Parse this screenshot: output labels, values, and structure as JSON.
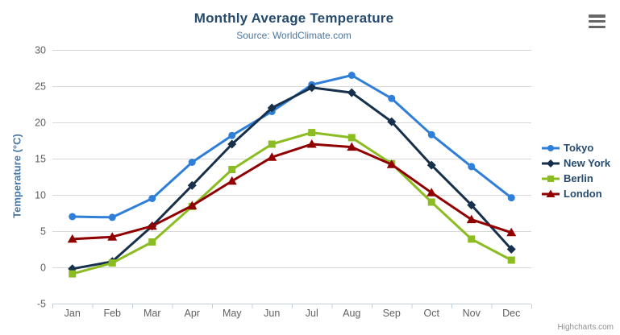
{
  "chart": {
    "title": "Monthly Average Temperature",
    "subtitle": "Source: WorldClimate.com",
    "credits": "Highcharts.com",
    "context_menu_icon": "hamburger-icon"
  },
  "chart_data": {
    "type": "line",
    "title": "Monthly Average Temperature",
    "subtitle": "Source: WorldClimate.com",
    "xlabel": "",
    "ylabel": "Temperature (°C)",
    "ylim": [
      -5,
      30
    ],
    "y_ticks": [
      -5,
      0,
      5,
      10,
      15,
      20,
      25,
      30
    ],
    "grid": true,
    "legend_position": "right",
    "categories": [
      "Jan",
      "Feb",
      "Mar",
      "Apr",
      "May",
      "Jun",
      "Jul",
      "Aug",
      "Sep",
      "Oct",
      "Nov",
      "Dec"
    ],
    "series": [
      {
        "name": "Tokyo",
        "color": "#2f7ed8",
        "marker": "circle",
        "values": [
          7.0,
          6.9,
          9.5,
          14.5,
          18.2,
          21.5,
          25.2,
          26.5,
          23.3,
          18.3,
          13.9,
          9.6
        ]
      },
      {
        "name": "New York",
        "color": "#17304c",
        "marker": "diamond",
        "values": [
          -0.2,
          0.8,
          5.7,
          11.3,
          17.0,
          22.0,
          24.8,
          24.1,
          20.1,
          14.1,
          8.6,
          2.5
        ]
      },
      {
        "name": "Berlin",
        "color": "#8bbc21",
        "marker": "square",
        "values": [
          -0.9,
          0.6,
          3.5,
          8.4,
          13.5,
          17.0,
          18.6,
          17.9,
          14.3,
          9.0,
          3.9,
          1.0
        ]
      },
      {
        "name": "London",
        "color": "#910000",
        "marker": "triangle",
        "values": [
          3.9,
          4.2,
          5.7,
          8.5,
          11.9,
          15.2,
          17.0,
          16.6,
          14.2,
          10.3,
          6.6,
          4.8
        ]
      }
    ],
    "style": {
      "grid_color": "#d8d8d8",
      "axis_color": "#c0d0e0",
      "label_color": "#606060",
      "title_color": "#274b6d",
      "subtitle_color": "#4d759e",
      "axis_title_color": "#4878a8",
      "legend_text_color": "#274b6d",
      "credits_color": "#909090"
    }
  }
}
